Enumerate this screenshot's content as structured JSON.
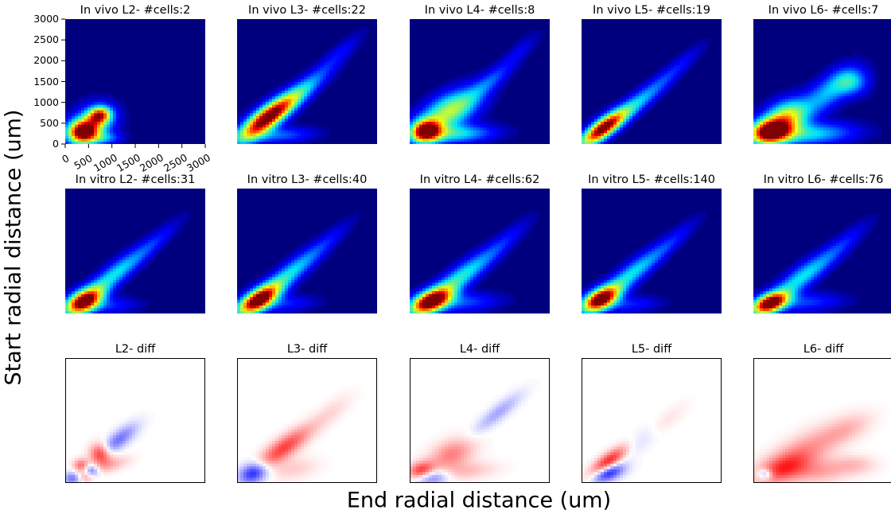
{
  "figure": {
    "ylabel": "Start radial distance (um)",
    "xlabel": "End radial distance (um)"
  },
  "colors": {
    "jet_background": "#00007f",
    "diff_background": "#ffffff",
    "diff_positive": "#ff0000",
    "diff_negative": "#0000ff"
  },
  "chart_data": [
    {
      "type": "heatmap",
      "row": "in_vivo",
      "title": "In vivo L2- #cells:2",
      "xlim": [
        0,
        3000
      ],
      "ylim": [
        0,
        3000
      ],
      "xticks": [
        "0",
        "500",
        "1000",
        "1500",
        "2000",
        "2500",
        "3000"
      ],
      "yticks": [
        "0",
        "500",
        "1000",
        "1500",
        "2000",
        "2500",
        "3000"
      ],
      "blobs": [
        {
          "x": 380,
          "y": 300,
          "sx": 230,
          "sy": 190,
          "rot": 0.2,
          "amp": 1.0
        },
        {
          "x": 740,
          "y": 700,
          "sx": 170,
          "sy": 140,
          "rot": 0.2,
          "amp": 0.72
        },
        {
          "x": 600,
          "y": 500,
          "sx": 340,
          "sy": 280,
          "rot": 0.7,
          "amp": 0.35
        },
        {
          "x": 850,
          "y": 150,
          "sx": 250,
          "sy": 100,
          "rot": 0,
          "amp": 0.2
        }
      ]
    },
    {
      "type": "heatmap",
      "row": "in_vivo",
      "title": "In vivo L3- #cells:22",
      "xlim": [
        0,
        3000
      ],
      "ylim": [
        0,
        3000
      ],
      "blobs": [
        {
          "x": 620,
          "y": 620,
          "sx": 520,
          "sy": 170,
          "rot": 0.72,
          "amp": 1.0
        },
        {
          "x": 1300,
          "y": 1200,
          "sx": 650,
          "sy": 150,
          "rot": 0.75,
          "amp": 0.32
        },
        {
          "x": 2200,
          "y": 2200,
          "sx": 450,
          "sy": 120,
          "rot": 0.78,
          "amp": 0.1
        },
        {
          "x": 900,
          "y": 220,
          "sx": 500,
          "sy": 130,
          "rot": 0.05,
          "amp": 0.22
        }
      ]
    },
    {
      "type": "heatmap",
      "row": "in_vivo",
      "title": "In vivo L4- #cells:8",
      "xlim": [
        0,
        3000
      ],
      "ylim": [
        0,
        3000
      ],
      "blobs": [
        {
          "x": 350,
          "y": 320,
          "sx": 220,
          "sy": 180,
          "rot": 0.3,
          "amp": 1.0
        },
        {
          "x": 850,
          "y": 800,
          "sx": 500,
          "sy": 260,
          "rot": 0.6,
          "amp": 0.55
        },
        {
          "x": 1000,
          "y": 250,
          "sx": 550,
          "sy": 150,
          "rot": 0.05,
          "amp": 0.35
        },
        {
          "x": 1700,
          "y": 1500,
          "sx": 500,
          "sy": 140,
          "rot": 0.75,
          "amp": 0.2
        },
        {
          "x": 2400,
          "y": 2300,
          "sx": 350,
          "sy": 120,
          "rot": 0.78,
          "amp": 0.08
        }
      ]
    },
    {
      "type": "heatmap",
      "row": "in_vivo",
      "title": "In vivo L5- #cells:19",
      "xlim": [
        0,
        3000
      ],
      "ylim": [
        0,
        3000
      ],
      "blobs": [
        {
          "x": 450,
          "y": 380,
          "sx": 420,
          "sy": 140,
          "rot": 0.72,
          "amp": 1.0
        },
        {
          "x": 1200,
          "y": 1000,
          "sx": 650,
          "sy": 140,
          "rot": 0.75,
          "amp": 0.3
        },
        {
          "x": 2100,
          "y": 1900,
          "sx": 500,
          "sy": 110,
          "rot": 0.78,
          "amp": 0.1
        }
      ]
    },
    {
      "type": "heatmap",
      "row": "in_vivo",
      "title": "In vivo L6- #cells:7",
      "xlim": [
        0,
        3000
      ],
      "ylim": [
        0,
        3000
      ],
      "blobs": [
        {
          "x": 350,
          "y": 300,
          "sx": 300,
          "sy": 200,
          "rot": 0.2,
          "amp": 1.0
        },
        {
          "x": 700,
          "y": 650,
          "sx": 350,
          "sy": 250,
          "rot": 0.6,
          "amp": 0.6
        },
        {
          "x": 1200,
          "y": 250,
          "sx": 650,
          "sy": 180,
          "rot": 0.05,
          "amp": 0.35
        },
        {
          "x": 1600,
          "y": 1250,
          "sx": 500,
          "sy": 220,
          "rot": 0.75,
          "amp": 0.3
        },
        {
          "x": 2100,
          "y": 1500,
          "sx": 250,
          "sy": 220,
          "rot": 0,
          "amp": 0.28
        }
      ]
    },
    {
      "type": "heatmap",
      "row": "in_vitro",
      "title": "In vitro L2- #cells:31",
      "xlim": [
        0,
        3000
      ],
      "ylim": [
        0,
        3000
      ],
      "blobs": [
        {
          "x": 400,
          "y": 300,
          "sx": 300,
          "sy": 170,
          "rot": 0.55,
          "amp": 1.0
        },
        {
          "x": 1000,
          "y": 900,
          "sx": 650,
          "sy": 160,
          "rot": 0.75,
          "amp": 0.35
        },
        {
          "x": 1900,
          "y": 1700,
          "sx": 550,
          "sy": 120,
          "rot": 0.78,
          "amp": 0.12
        },
        {
          "x": 900,
          "y": 200,
          "sx": 450,
          "sy": 130,
          "rot": 0.05,
          "amp": 0.15
        }
      ]
    },
    {
      "type": "heatmap",
      "row": "in_vitro",
      "title": "In vitro L3- #cells:40",
      "xlim": [
        0,
        3000
      ],
      "ylim": [
        0,
        3000
      ],
      "blobs": [
        {
          "x": 450,
          "y": 330,
          "sx": 350,
          "sy": 160,
          "rot": 0.62,
          "amp": 1.0
        },
        {
          "x": 1050,
          "y": 900,
          "sx": 650,
          "sy": 160,
          "rot": 0.75,
          "amp": 0.35
        },
        {
          "x": 1900,
          "y": 1700,
          "sx": 550,
          "sy": 120,
          "rot": 0.78,
          "amp": 0.1
        },
        {
          "x": 1000,
          "y": 250,
          "sx": 450,
          "sy": 130,
          "rot": 0.05,
          "amp": 0.15
        }
      ]
    },
    {
      "type": "heatmap",
      "row": "in_vitro",
      "title": "In vitro L4- #cells:62",
      "xlim": [
        0,
        3000
      ],
      "ylim": [
        0,
        3000
      ],
      "blobs": [
        {
          "x": 450,
          "y": 300,
          "sx": 330,
          "sy": 170,
          "rot": 0.5,
          "amp": 1.0
        },
        {
          "x": 1050,
          "y": 850,
          "sx": 650,
          "sy": 170,
          "rot": 0.72,
          "amp": 0.38
        },
        {
          "x": 2000,
          "y": 1700,
          "sx": 550,
          "sy": 130,
          "rot": 0.78,
          "amp": 0.12
        },
        {
          "x": 1100,
          "y": 280,
          "sx": 550,
          "sy": 150,
          "rot": 0.05,
          "amp": 0.2
        }
      ]
    },
    {
      "type": "heatmap",
      "row": "in_vitro",
      "title": "In vitro L5- #cells:140",
      "xlim": [
        0,
        3000
      ],
      "ylim": [
        0,
        3000
      ],
      "blobs": [
        {
          "x": 400,
          "y": 350,
          "sx": 300,
          "sy": 160,
          "rot": 0.55,
          "amp": 1.0
        },
        {
          "x": 1000,
          "y": 900,
          "sx": 650,
          "sy": 160,
          "rot": 0.75,
          "amp": 0.35
        },
        {
          "x": 1900,
          "y": 1700,
          "sx": 550,
          "sy": 120,
          "rot": 0.78,
          "amp": 0.12
        },
        {
          "x": 1000,
          "y": 230,
          "sx": 450,
          "sy": 130,
          "rot": 0.05,
          "amp": 0.15
        }
      ]
    },
    {
      "type": "heatmap",
      "row": "in_vitro",
      "title": "In vitro L6- #cells:76",
      "xlim": [
        0,
        3000
      ],
      "ylim": [
        0,
        3000
      ],
      "blobs": [
        {
          "x": 350,
          "y": 250,
          "sx": 280,
          "sy": 150,
          "rot": 0.45,
          "amp": 1.0
        },
        {
          "x": 1000,
          "y": 850,
          "sx": 650,
          "sy": 170,
          "rot": 0.72,
          "amp": 0.35
        },
        {
          "x": 1900,
          "y": 1650,
          "sx": 550,
          "sy": 130,
          "rot": 0.78,
          "amp": 0.12
        },
        {
          "x": 1100,
          "y": 280,
          "sx": 550,
          "sy": 150,
          "rot": 0.05,
          "amp": 0.18
        }
      ]
    },
    {
      "type": "heatmap",
      "row": "diff",
      "title": "L2- diff",
      "xlim": [
        0,
        3000
      ],
      "ylim": [
        0,
        3000
      ],
      "blobs": [
        {
          "x": 750,
          "y": 700,
          "sx": 150,
          "sy": 170,
          "rot": 0,
          "amp": 0.85
        },
        {
          "x": 350,
          "y": 430,
          "sx": 120,
          "sy": 110,
          "rot": 0,
          "amp": 0.6
        },
        {
          "x": 1150,
          "y": 1050,
          "sx": 350,
          "sy": 130,
          "rot": 0.75,
          "amp": -0.55
        },
        {
          "x": 550,
          "y": 300,
          "sx": 120,
          "sy": 110,
          "rot": 0,
          "amp": -0.7
        },
        {
          "x": 150,
          "y": 120,
          "sx": 130,
          "sy": 110,
          "rot": 0,
          "amp": -0.55
        },
        {
          "x": 450,
          "y": 170,
          "sx": 120,
          "sy": 100,
          "rot": 0,
          "amp": 0.45
        },
        {
          "x": 950,
          "y": 450,
          "sx": 300,
          "sy": 120,
          "rot": 0.3,
          "amp": 0.3
        }
      ]
    },
    {
      "type": "heatmap",
      "row": "diff",
      "title": "L3- diff",
      "xlim": [
        0,
        3000
      ],
      "ylim": [
        0,
        3000
      ],
      "blobs": [
        {
          "x": 1000,
          "y": 850,
          "sx": 500,
          "sy": 160,
          "rot": 0.7,
          "amp": 0.75
        },
        {
          "x": 350,
          "y": 250,
          "sx": 230,
          "sy": 160,
          "rot": 0.5,
          "amp": -0.95
        },
        {
          "x": 2000,
          "y": 1700,
          "sx": 400,
          "sy": 150,
          "rot": 0.75,
          "amp": 0.15
        },
        {
          "x": 1200,
          "y": 350,
          "sx": 350,
          "sy": 180,
          "rot": 0.2,
          "amp": 0.2
        }
      ]
    },
    {
      "type": "heatmap",
      "row": "diff",
      "title": "L4- diff",
      "xlim": [
        0,
        3000
      ],
      "ylim": [
        0,
        3000
      ],
      "blobs": [
        {
          "x": 250,
          "y": 300,
          "sx": 200,
          "sy": 140,
          "rot": 0.3,
          "amp": 0.85
        },
        {
          "x": 450,
          "y": 150,
          "sx": 260,
          "sy": 140,
          "rot": 0.1,
          "amp": -0.6
        },
        {
          "x": 900,
          "y": 700,
          "sx": 350,
          "sy": 220,
          "rot": 0.5,
          "amp": 0.5
        },
        {
          "x": 1900,
          "y": 1700,
          "sx": 450,
          "sy": 120,
          "rot": 0.75,
          "amp": -0.35
        },
        {
          "x": 1200,
          "y": 300,
          "sx": 450,
          "sy": 150,
          "rot": 0.1,
          "amp": 0.25
        }
      ]
    },
    {
      "type": "heatmap",
      "row": "diff",
      "title": "L5- diff",
      "xlim": [
        0,
        3000
      ],
      "ylim": [
        0,
        3000
      ],
      "blobs": [
        {
          "x": 550,
          "y": 500,
          "sx": 360,
          "sy": 120,
          "rot": 0.72,
          "amp": 0.95
        },
        {
          "x": 550,
          "y": 250,
          "sx": 260,
          "sy": 130,
          "rot": 0.4,
          "amp": -0.95
        },
        {
          "x": 1300,
          "y": 1050,
          "sx": 400,
          "sy": 140,
          "rot": 0.75,
          "amp": -0.2
        },
        {
          "x": 1700,
          "y": 1400,
          "sx": 450,
          "sy": 130,
          "rot": 0.75,
          "amp": 0.15
        }
      ]
    },
    {
      "type": "heatmap",
      "row": "diff",
      "title": "L6- diff",
      "xlim": [
        0,
        3000
      ],
      "ylim": [
        0,
        3000
      ],
      "blobs": [
        {
          "x": 1000,
          "y": 700,
          "sx": 650,
          "sy": 260,
          "rot": 0.6,
          "amp": 0.45
        },
        {
          "x": 600,
          "y": 350,
          "sx": 400,
          "sy": 200,
          "rot": 0.4,
          "amp": 0.5
        },
        {
          "x": 250,
          "y": 220,
          "sx": 110,
          "sy": 90,
          "rot": 0,
          "amp": -0.65
        },
        {
          "x": 1400,
          "y": 300,
          "sx": 500,
          "sy": 200,
          "rot": 0.1,
          "amp": 0.35
        },
        {
          "x": 2000,
          "y": 1300,
          "sx": 400,
          "sy": 200,
          "rot": 0.5,
          "amp": 0.25
        },
        {
          "x": 2200,
          "y": 450,
          "sx": 300,
          "sy": 150,
          "rot": 0,
          "amp": 0.2
        }
      ]
    }
  ]
}
